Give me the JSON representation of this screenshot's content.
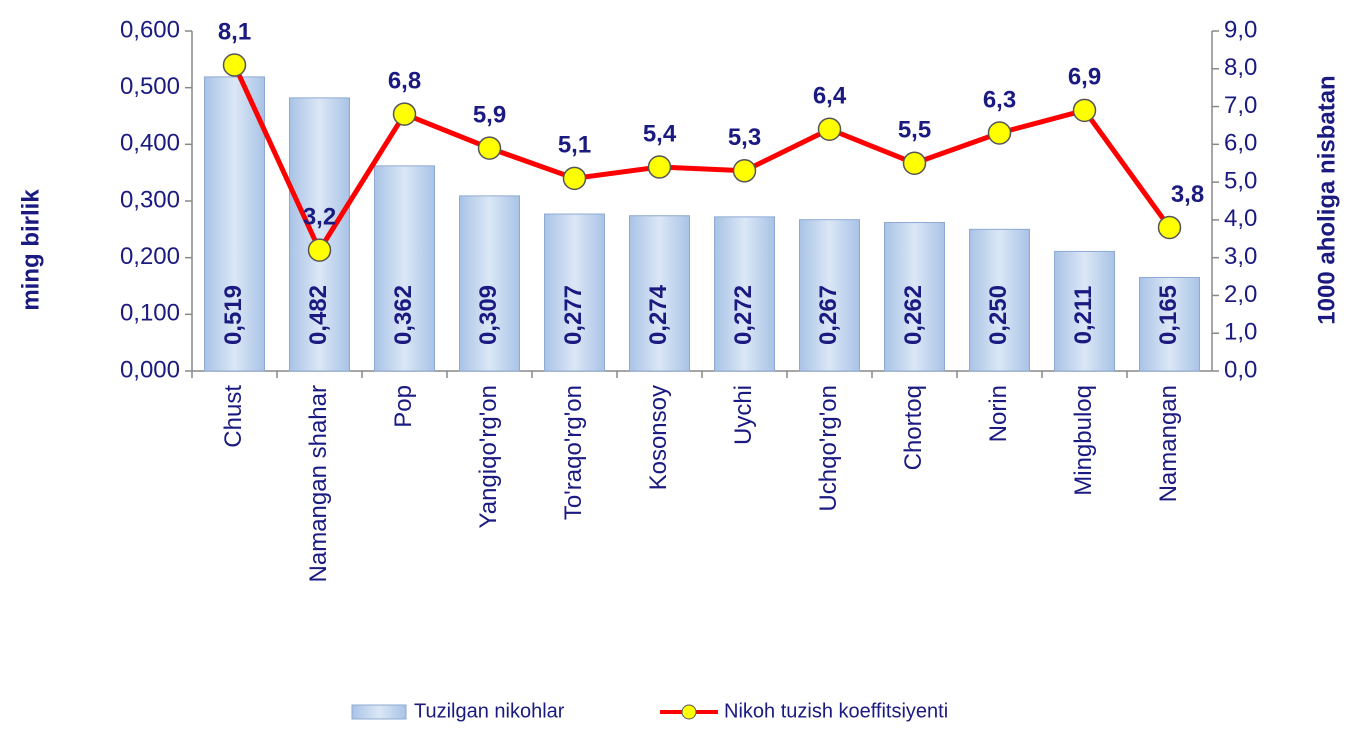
{
  "chart_data": {
    "type": "bar",
    "categories": [
      "Chust",
      "Namangan shahar",
      "Pop",
      "Yangiqo'rg'on",
      "To'raqo'rg'on",
      "Kosonsoy",
      "Uychi",
      "Uchqo'rg'on",
      "Chortoq",
      "Norin",
      "Mingbuloq",
      "Namangan"
    ],
    "series": [
      {
        "name": "Tuzilgan nikohlar",
        "type": "bar",
        "color": "#b9cfeb",
        "values": [
          0.519,
          0.482,
          0.362,
          0.309,
          0.277,
          0.274,
          0.272,
          0.267,
          0.262,
          0.25,
          0.211,
          0.165
        ],
        "value_labels": [
          "0,519",
          "0,482",
          "0,362",
          "0,309",
          "0,277",
          "0,274",
          "0,272",
          "0,267",
          "0,262",
          "0,250",
          "0,211",
          "0,165"
        ]
      },
      {
        "name": "Nikoh tuzish koeffitsiyenti",
        "type": "line",
        "axis": "y2",
        "color": "#ff0000",
        "values": [
          8.1,
          3.2,
          6.8,
          5.9,
          5.1,
          5.4,
          5.3,
          6.4,
          5.5,
          6.3,
          6.9,
          3.8
        ],
        "value_labels": [
          "8,1",
          "3,2",
          "6,8",
          "5,9",
          "5,1",
          "5,4",
          "5,3",
          "6,4",
          "5,5",
          "6,3",
          "6,9",
          "3,8"
        ]
      }
    ],
    "y_label": "ming birlik",
    "y2_label": "1000 aholiga nisbatan",
    "ylim": [
      0,
      0.6
    ],
    "yticks": [
      {
        "value": 0,
        "label": "0,000"
      },
      {
        "value": 0.1,
        "label": "0,100"
      },
      {
        "value": 0.2,
        "label": "0,200"
      },
      {
        "value": 0.3,
        "label": "0,300"
      },
      {
        "value": 0.4,
        "label": "0,400"
      },
      {
        "value": 0.5,
        "label": "0,500"
      },
      {
        "value": 0.6,
        "label": "0,600"
      }
    ],
    "y2lim": [
      0,
      9
    ],
    "y2ticks": [
      {
        "value": 0,
        "label": "0,0"
      },
      {
        "value": 1,
        "label": "1,0"
      },
      {
        "value": 2,
        "label": "2,0"
      },
      {
        "value": 3,
        "label": "3,0"
      },
      {
        "value": 4,
        "label": "4,0"
      },
      {
        "value": 5,
        "label": "5,0"
      },
      {
        "value": 6,
        "label": "6,0"
      },
      {
        "value": 7,
        "label": "7,0"
      },
      {
        "value": 8,
        "label": "8,0"
      },
      {
        "value": 9,
        "label": "9,0"
      }
    ],
    "marker_color": "#ffff00",
    "legend": "bottom"
  }
}
